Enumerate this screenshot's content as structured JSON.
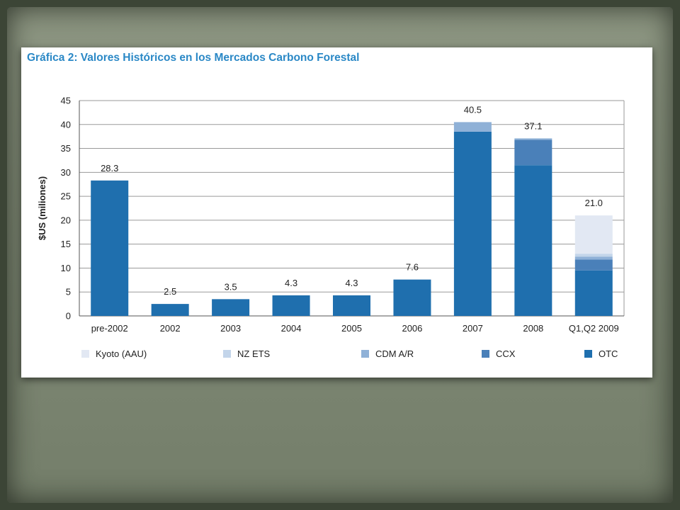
{
  "chart_data": {
    "type": "bar",
    "stacked": true,
    "title": "Gráfica 2: Valores Históricos en los Mercados Carbono Forestal",
    "xlabel": "",
    "ylabel": "$US (miliones)",
    "ylim": [
      0,
      45
    ],
    "yticks": [
      0,
      5,
      10,
      15,
      20,
      25,
      30,
      35,
      40,
      45
    ],
    "grid": true,
    "legend_position": "bottom",
    "categories": [
      "pre-2002",
      "2002",
      "2003",
      "2004",
      "2005",
      "2006",
      "2007",
      "2008",
      "Q1,Q2 2009"
    ],
    "series": [
      {
        "name": "OTC",
        "color": "#1f6fae",
        "values": [
          28.3,
          2.5,
          3.5,
          4.3,
          4.3,
          7.6,
          38.5,
          31.5,
          9.5
        ]
      },
      {
        "name": "CCX",
        "color": "#4a80b9",
        "values": [
          0,
          0,
          0,
          0,
          0,
          0,
          0,
          5.3,
          2.3
        ]
      },
      {
        "name": "CDM A/R",
        "color": "#8fb1d7",
        "values": [
          0,
          0,
          0,
          0,
          0,
          0,
          2.0,
          0.3,
          0.6
        ]
      },
      {
        "name": "NZ ETS",
        "color": "#c3d5ea",
        "values": [
          0,
          0,
          0,
          0,
          0,
          0,
          0,
          0,
          0.6
        ]
      },
      {
        "name": "Kyoto (AAU)",
        "color": "#e2e8f3",
        "values": [
          0,
          0,
          0,
          0,
          0,
          0,
          0,
          0,
          8.0
        ]
      }
    ],
    "totals": [
      "28.3",
      "2.5",
      "3.5",
      "4.3",
      "4.3",
      "7.6",
      "40.5",
      "37.1",
      "21.0"
    ],
    "legend_order": [
      "Kyoto (AAU)",
      "NZ ETS",
      "CDM A/R",
      "CCX",
      "OTC"
    ]
  }
}
